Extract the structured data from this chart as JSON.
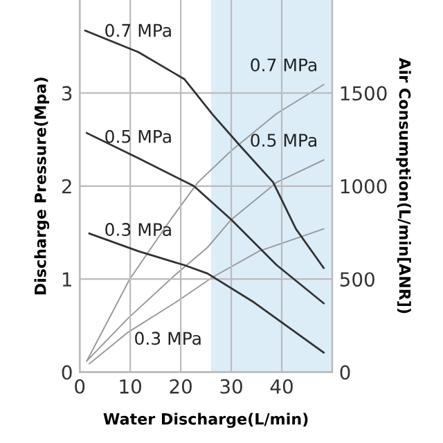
{
  "chart_data": {
    "type": "line",
    "xlabel": "Water Discharge(L/min)",
    "ylabel": "Discharge Pressure(Mpa)",
    "y2label": "Air Consumption(L/min[ANR])",
    "xlim": [
      0,
      50
    ],
    "xticks": [
      0,
      10,
      20,
      30,
      40
    ],
    "ylim": [
      0,
      4
    ],
    "yticks": [
      0,
      1,
      2,
      3
    ],
    "y2lim": [
      0,
      2000
    ],
    "y2ticks": [
      0,
      500,
      1000,
      1500
    ],
    "grid": true,
    "marker": "none",
    "line_style": "solid",
    "bands": [
      {
        "axis": "x",
        "from": 26,
        "to": 50,
        "color": "#dcedf8"
      }
    ],
    "series": [
      {
        "name": "0.7 MPa",
        "color": "#333333",
        "x": [
          1.1,
          11.6,
          20.7,
          26.3,
          31.8,
          38.3,
          42.8,
          48.3
        ],
        "values": [
          3.67,
          3.44,
          3.15,
          2.77,
          2.43,
          2.04,
          1.54,
          1.12
        ]
      },
      {
        "name": "0.5 MPa",
        "color": "#333333",
        "x": [
          1.4,
          11.6,
          22.6,
          30,
          39,
          48.3
        ],
        "values": [
          2.57,
          2.3,
          2.0,
          1.64,
          1.15,
          0.74
        ]
      },
      {
        "name": "0.3 MPa",
        "color": "#333333",
        "x": [
          1.9,
          11.6,
          20.7,
          25.3,
          34.5,
          48.3
        ],
        "values": [
          1.49,
          1.3,
          1.15,
          1.06,
          0.75,
          0.21
        ]
      },
      {
        "name": "0.7 MPa",
        "color": "#999999",
        "axis": "y2",
        "x": [
          1.4,
          9.9,
          18,
          23.4,
          30,
          39,
          48.3
        ],
        "values": [
          60,
          500,
          820,
          1020,
          1190,
          1390,
          1545
        ]
      },
      {
        "name": "0.5 MPa",
        "color": "#999999",
        "axis": "y2",
        "x": [
          1.4,
          9.6,
          19,
          25.3,
          30,
          39,
          48.3
        ],
        "values": [
          60,
          290,
          525,
          670,
          820,
          1020,
          1140
        ]
      },
      {
        "name": "0.3 MPa",
        "color": "#999999",
        "axis": "y2",
        "x": [
          1.9,
          9.6,
          19,
          26.3,
          35.5,
          48.3
        ],
        "values": [
          45,
          215,
          375,
          510,
          650,
          770
        ]
      }
    ]
  }
}
